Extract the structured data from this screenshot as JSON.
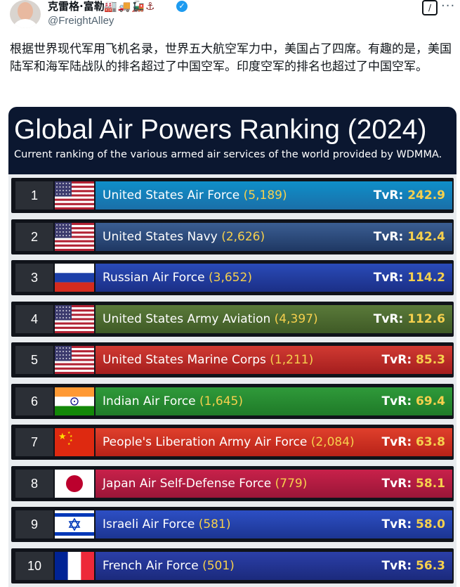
{
  "tweet": {
    "author_name": "克雷格·富勒",
    "author_emojis": "🏭🚚🚂⚓",
    "handle": "@FreightAlley",
    "text": "根据世界现代军用飞机名录，世界五大航空军力中，美国占了四席。有趣的是，美国陆军和海军陆战队的排名超过了中国空军。印度空军的排名也超过了中国空军。"
  },
  "infographic": {
    "title": "Global Air Powers Ranking (2024)",
    "subtitle": "Current ranking of the various armed air services of the world provided by WDMMA.",
    "tvr_label": "TvR:",
    "rows": [
      {
        "rank": "1",
        "name": "United States Air Force",
        "count": "(5,189)",
        "tvr": "242.9",
        "flag": "us-flag-icon",
        "color_start": "#0f8fc9",
        "color_end": "#1a6fa8"
      },
      {
        "rank": "2",
        "name": "United States Navy",
        "count": "(2,626)",
        "tvr": "142.4",
        "flag": "us-flag-icon",
        "color_start": "#3b5e93",
        "color_end": "#1f3863"
      },
      {
        "rank": "3",
        "name": "Russian Air Force",
        "count": "(3,652)",
        "tvr": "114.2",
        "flag": "russia-flag-icon",
        "color_start": "#2a4bb8",
        "color_end": "#1b2f86"
      },
      {
        "rank": "4",
        "name": "United States Army Aviation",
        "count": "(4,397)",
        "tvr": "112.6",
        "flag": "us-flag-icon",
        "color_start": "#5a7a3a",
        "color_end": "#3f5a26"
      },
      {
        "rank": "5",
        "name": "United States Marine Corps",
        "count": "(1,211)",
        "tvr": "85.3",
        "flag": "us-flag-icon",
        "color_start": "#d13a32",
        "color_end": "#a41e1e"
      },
      {
        "rank": "6",
        "name": "Indian Air Force",
        "count": "(1,645)",
        "tvr": "69.4",
        "flag": "india-flag-icon",
        "color_start": "#2f9a3a",
        "color_end": "#1f7a28"
      },
      {
        "rank": "7",
        "name": "People's Liberation Army Air Force",
        "count": "(2,084)",
        "tvr": "63.8",
        "flag": "china-flag-icon",
        "color_start": "#e0402c",
        "color_end": "#b82218"
      },
      {
        "rank": "8",
        "name": "Japan Air Self-Defense Force",
        "count": "(779)",
        "tvr": "58.1",
        "flag": "japan-flag-icon",
        "color_start": "#c8214a",
        "color_end": "#9a1638"
      },
      {
        "rank": "9",
        "name": "Israeli Air Force",
        "count": "(581)",
        "tvr": "58.0",
        "flag": "israel-flag-icon",
        "color_start": "#2d4fc4",
        "color_end": "#1c3592"
      },
      {
        "rank": "10",
        "name": "French Air Force",
        "count": "(501)",
        "tvr": "56.3",
        "flag": "france-flag-icon",
        "color_start": "#2b3fa8",
        "color_end": "#1b2a7c"
      }
    ]
  }
}
